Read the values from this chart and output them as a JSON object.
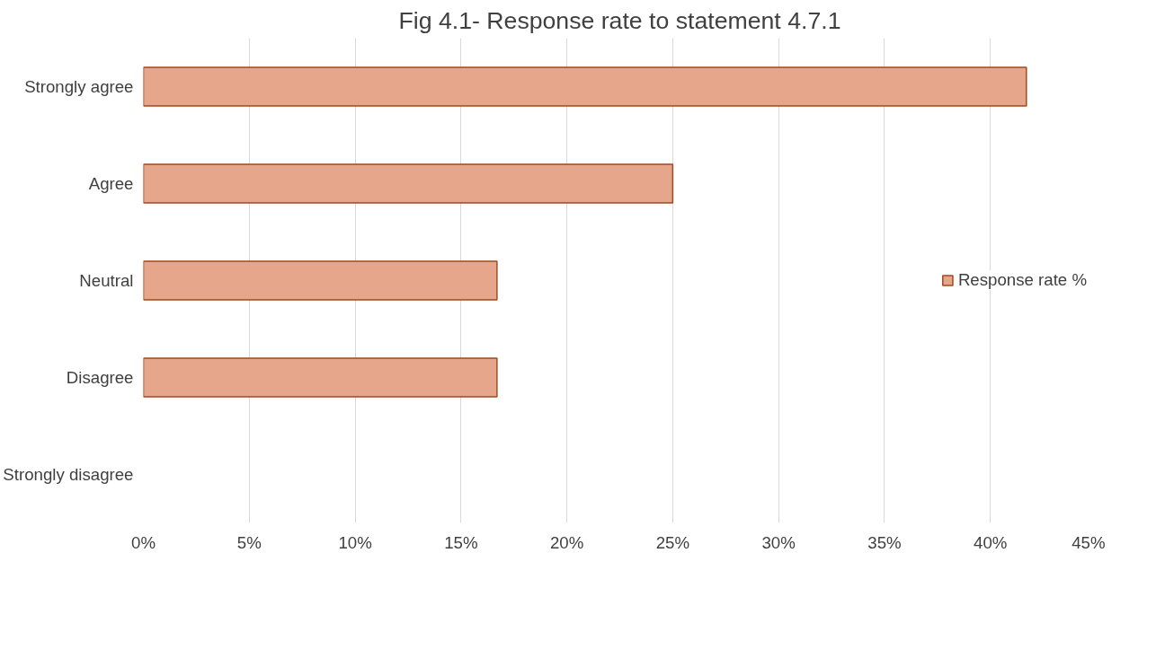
{
  "chart_data": {
    "type": "bar",
    "orientation": "horizontal",
    "title": "Fig 4.1- Response rate to statement 4.7.1",
    "categories": [
      "Strongly agree",
      "Agree",
      "Neutral",
      "Disagree",
      "Strongly disagree"
    ],
    "series": [
      {
        "name": "Response rate %",
        "color": "#e6a68c",
        "values": [
          41.7,
          25,
          16.7,
          16.7,
          0
        ]
      }
    ],
    "xlim": [
      0,
      45
    ],
    "xticks": [
      {
        "value": 0,
        "label": "0%"
      },
      {
        "value": 5,
        "label": "5%"
      },
      {
        "value": 10,
        "label": "10%"
      },
      {
        "value": 15,
        "label": "15%"
      },
      {
        "value": 20,
        "label": "20%"
      },
      {
        "value": 25,
        "label": "25%"
      },
      {
        "value": 30,
        "label": "30%"
      },
      {
        "value": 35,
        "label": "35%"
      },
      {
        "value": 40,
        "label": "40%"
      },
      {
        "value": 45,
        "label": "45%"
      }
    ],
    "grid": "x",
    "legend": "right"
  }
}
